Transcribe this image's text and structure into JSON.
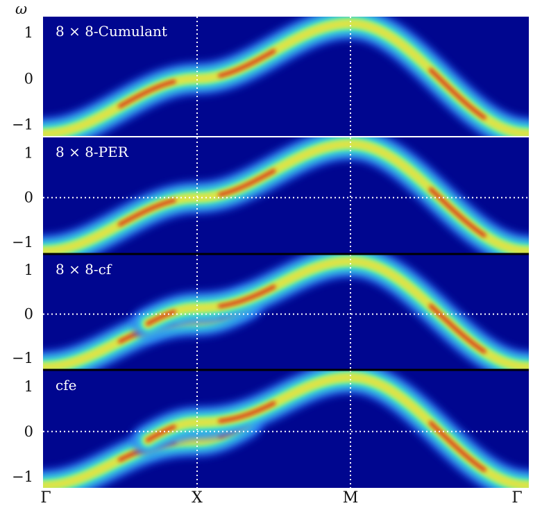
{
  "chart_data": {
    "type": "heatmap",
    "ylabel": "ω",
    "ylim": [
      -1.25,
      1.35
    ],
    "yticks": [
      1,
      0,
      -1
    ],
    "ytick_labels": [
      "1",
      "0",
      "−1"
    ],
    "k_path": [
      "Γ",
      "X",
      "M",
      "Γ"
    ],
    "colormap": "jet",
    "grid": "dotted lines at X, M and ω = 0",
    "band_energy_at_k": {
      "Γ": -1.2,
      "X": 0,
      "M": 1.2
    },
    "panels": [
      {
        "label": "8 × 8-Cumulant",
        "gap_at_X": 0.0,
        "zero_line": false
      },
      {
        "label": "8 × 8-PER",
        "gap_at_X": 0.0,
        "zero_line": true
      },
      {
        "label": "8 × 8-cf",
        "gap_at_X": 0.14,
        "zero_line": true
      },
      {
        "label": "cfe",
        "gap_at_X": 0.2,
        "zero_line": true
      }
    ],
    "colors": {
      "background": "#00068f",
      "low": "#2a6bff",
      "mid": "#3de8d0",
      "high": "#e8e040",
      "peak": "#d82a10"
    }
  }
}
